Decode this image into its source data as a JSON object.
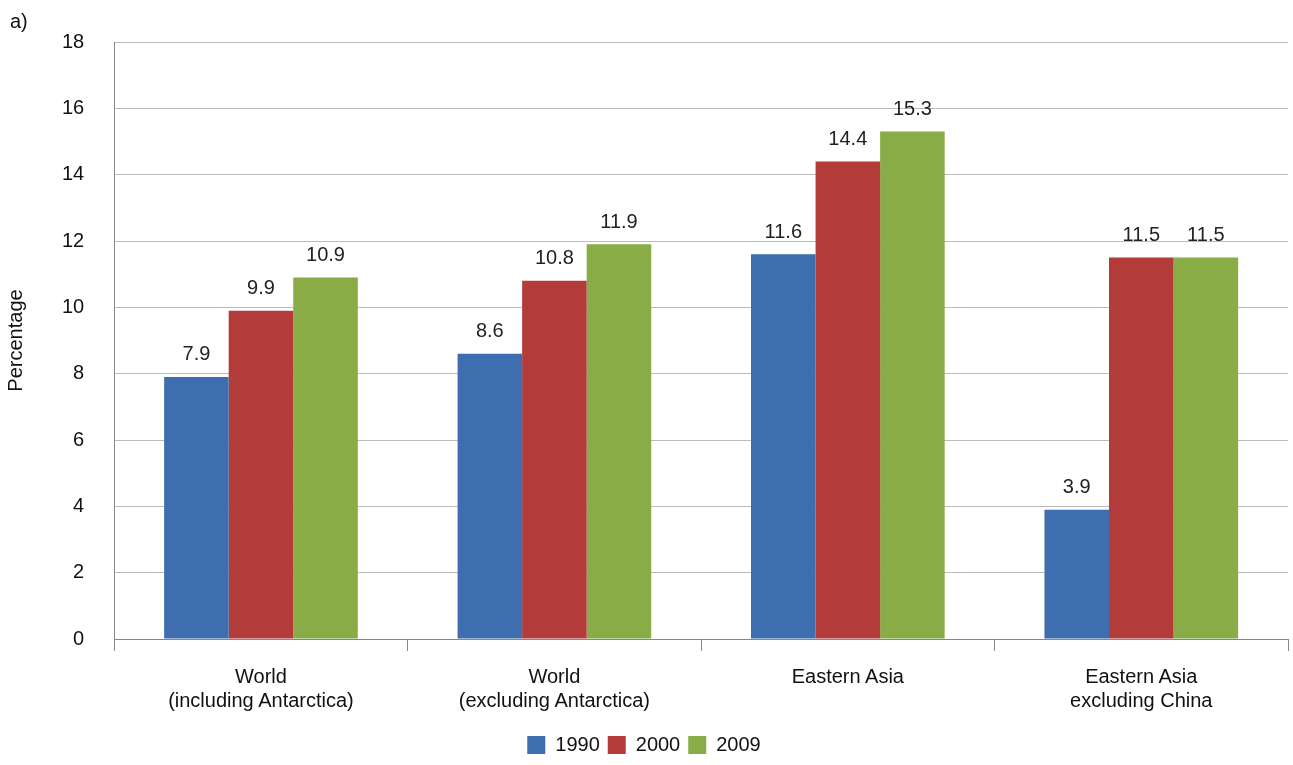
{
  "chart_data": {
    "type": "bar",
    "ylabel": "Percentage",
    "categories": [
      "World\n(including Antarctica)",
      "World\n(excluding Antarctica)",
      "Eastern Asia",
      "Eastern Asia\nexcluding China"
    ],
    "series": [
      {
        "name": "1990",
        "color": "#3e6db0",
        "values": [
          7.9,
          8.6,
          11.6,
          3.9
        ]
      },
      {
        "name": "2000",
        "color": "#b33b39",
        "values": [
          9.9,
          10.8,
          14.4,
          11.5
        ]
      },
      {
        "name": "2009",
        "color": "#8aac46",
        "values": [
          10.9,
          11.9,
          15.3,
          11.5
        ]
      }
    ],
    "ylim": [
      0,
      18
    ],
    "yticks": [
      0,
      2,
      4,
      6,
      8,
      10,
      12,
      14,
      16,
      18
    ],
    "grid": "y",
    "legend": "bottom",
    "data_labels": true,
    "annotations": [
      "a)"
    ]
  }
}
